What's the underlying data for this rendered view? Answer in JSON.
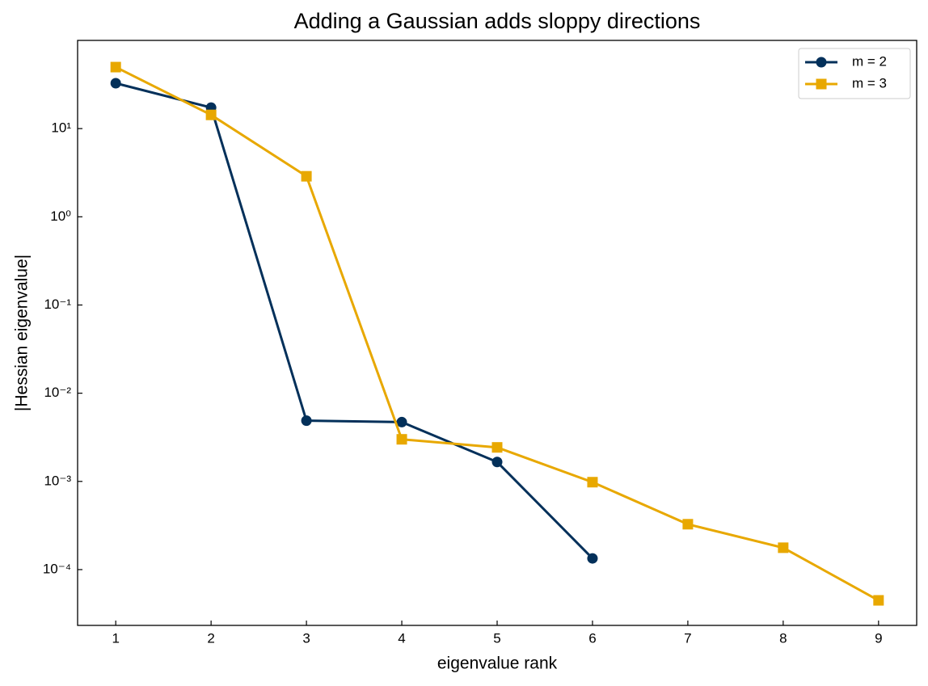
{
  "chart_data": {
    "type": "line",
    "title": "Adding a Gaussian adds sloppy directions",
    "x_label": "eigenvalue rank",
    "y_label": "|Hessian eigenvalue|",
    "x": [
      1,
      2,
      3,
      4,
      5,
      6,
      7,
      8,
      9
    ],
    "series": [
      {
        "name": "m = 2",
        "color": "#03305a",
        "marker": "circle",
        "values": [
          32.7,
          17.3,
          0.00488,
          0.0047,
          0.00166,
          0.000134,
          null,
          null,
          null
        ]
      },
      {
        "name": "m = 3",
        "color": "#e8a800",
        "marker": "square",
        "values": [
          49.8,
          14.3,
          2.88,
          0.003,
          0.00243,
          0.00098,
          0.000327,
          0.000177,
          4.48e-05
        ]
      }
    ],
    "xlim": [
      0.6,
      9.4
    ],
    "xticks": [
      1,
      2,
      3,
      4,
      5,
      6,
      7,
      8,
      9
    ],
    "ylim": [
      2.33e-05,
      100
    ],
    "log_y": true,
    "yticks": [
      {
        "value": 0.0001,
        "label": "10⁻⁴"
      },
      {
        "value": 0.001,
        "label": "10⁻³"
      },
      {
        "value": 0.01,
        "label": "10⁻²"
      },
      {
        "value": 0.1,
        "label": "10⁻¹"
      },
      {
        "value": 1,
        "label": "10⁰"
      },
      {
        "value": 10,
        "label": "10¹"
      }
    ],
    "legend": "upper right",
    "grid": false
  }
}
